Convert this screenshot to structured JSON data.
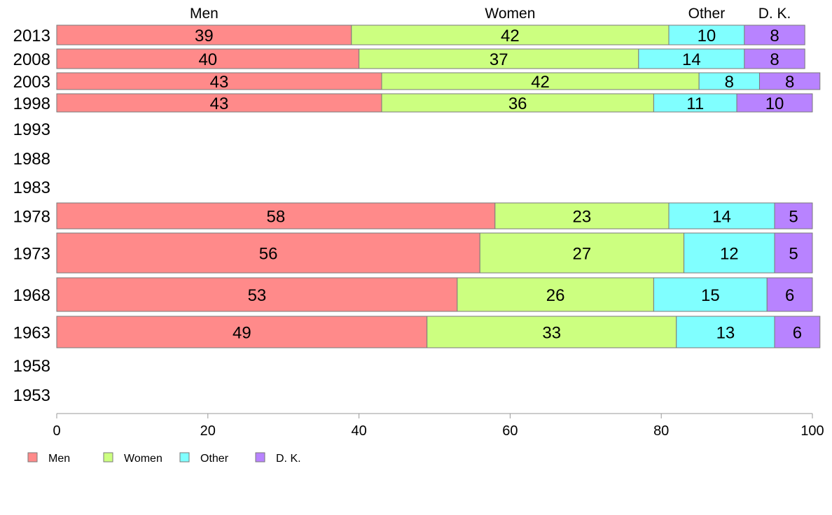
{
  "chart_data": {
    "type": "bar",
    "orientation": "horizontal",
    "stacked": true,
    "categories": [
      "2013",
      "2008",
      "2003",
      "1998",
      "1993",
      "1988",
      "1983",
      "1978",
      "1973",
      "1968",
      "1963",
      "1958",
      "1953"
    ],
    "series": [
      {
        "name": "Men",
        "color": "#FF8A8A",
        "values": [
          39,
          40,
          43,
          43,
          null,
          null,
          null,
          58,
          56,
          53,
          49,
          null,
          null
        ]
      },
      {
        "name": "Women",
        "color": "#CCFF80",
        "values": [
          42,
          37,
          42,
          36,
          null,
          null,
          null,
          23,
          27,
          26,
          33,
          null,
          null
        ]
      },
      {
        "name": "Other",
        "color": "#80FFFF",
        "values": [
          10,
          14,
          8,
          11,
          null,
          null,
          null,
          14,
          12,
          15,
          13,
          null,
          null
        ]
      },
      {
        "name": "D. K.",
        "color": "#B883FF",
        "values": [
          8,
          8,
          8,
          10,
          null,
          null,
          null,
          5,
          5,
          6,
          6,
          null,
          null
        ]
      }
    ],
    "xticks": [
      "0",
      "20",
      "40",
      "60",
      "80",
      "100"
    ],
    "xlim": [
      0,
      100
    ],
    "column_headers": [
      "Men",
      "Women",
      "Other",
      "D. K."
    ],
    "legend": [
      "Men",
      "Women",
      "Other",
      "D. K."
    ],
    "legend_position": "bottom-left",
    "grid": false
  }
}
